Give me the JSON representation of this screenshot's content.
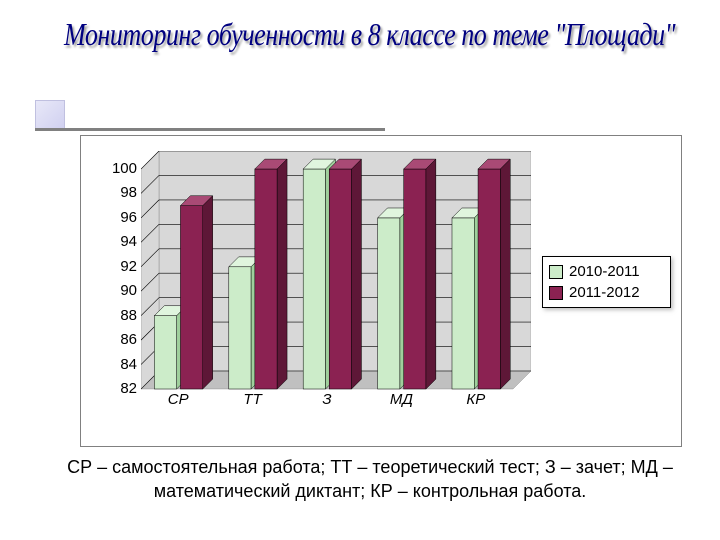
{
  "title": "Мониторинг обученности в 8 классе по теме \"Площади\"",
  "title_color": "#000080",
  "title_fontsize": 28,
  "chart": {
    "type": "bar3d_grouped",
    "categories": [
      "СР",
      "ТТ",
      "З",
      "МД",
      "КР"
    ],
    "series": [
      {
        "name": "2010-2011",
        "color": "#ccecc9",
        "side_color": "#9fcf9c",
        "top_color": "#e0f5de",
        "values": [
          88,
          92,
          100,
          96,
          96
        ]
      },
      {
        "name": "2011-2012",
        "color": "#8b2252",
        "side_color": "#5e1737",
        "top_color": "#a94a75",
        "values": [
          97,
          100,
          100,
          100,
          100
        ]
      }
    ],
    "yticks": [
      82,
      84,
      86,
      88,
      90,
      92,
      94,
      96,
      98,
      100
    ],
    "ylim": [
      82,
      100
    ],
    "tick_fontsize": 15,
    "category_fontsize": 15,
    "category_font_italic": true,
    "floor_color": "#c0c0c0",
    "wall_color": "#d8d8d8",
    "grid_color": "#000000",
    "depth": 18
  },
  "legend": {
    "items": [
      "2010-2011",
      "2011-2012"
    ],
    "swatch_colors": [
      "#ccecc9",
      "#8b2252"
    ]
  },
  "caption": "СР – самостоятельная работа; ТТ – теоретический тест; З – зачет; МД – математический диктант; КР – контрольная работа."
}
